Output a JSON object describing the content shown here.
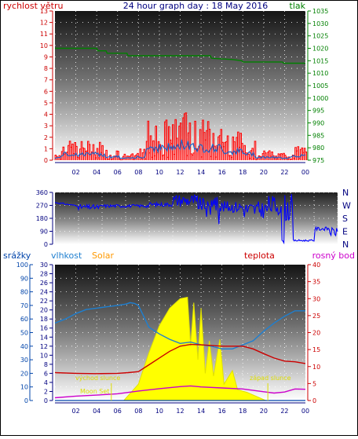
{
  "title": "24 hour graph day : 18 May 2016",
  "colors": {
    "wind": "#cc0000",
    "gust": "#ff0000",
    "wind_avg": "#1e64c8",
    "pressure": "#008000",
    "direction": "#0000ff",
    "humidity": "#1e7fd0",
    "solar": "#ffff00",
    "solar_text": "#ff9900",
    "temperature": "#cc0000",
    "dewpoint": "#cc00cc",
    "rain": "#0044aa",
    "sun_marker": "#dddd00"
  },
  "chart_data": [
    {
      "type": "line",
      "title": "24 hour graph day : 18 May 2016",
      "x_ticks": [
        "02",
        "04",
        "06",
        "08",
        "10",
        "12",
        "14",
        "16",
        "18",
        "20",
        "22",
        "00"
      ],
      "left_axis": {
        "label": "rychlost větru",
        "range": [
          0,
          13
        ],
        "ticks": [
          0,
          1,
          2,
          3,
          4,
          5,
          6,
          7,
          8,
          9,
          10,
          11,
          12,
          13
        ]
      },
      "right_axis": {
        "label": "tlak",
        "range": [
          975,
          1035
        ],
        "ticks": [
          975,
          980,
          985,
          990,
          995,
          1000,
          1005,
          1010,
          1015,
          1020,
          1025,
          1030,
          1035
        ]
      },
      "series": [
        {
          "name": "tlak",
          "axis": "right",
          "points": [
            [
              0,
              1020
            ],
            [
              4,
              1020
            ],
            [
              4.1,
              1019
            ],
            [
              4.9,
              1019
            ],
            [
              5,
              1018
            ],
            [
              6.9,
              1018
            ],
            [
              7,
              1017
            ],
            [
              14.9,
              1017
            ],
            [
              15,
              1016
            ],
            [
              17,
              1015.5
            ],
            [
              17.9,
              1015
            ],
            [
              18,
              1014.5
            ],
            [
              21.8,
              1014.5
            ],
            [
              21.9,
              1014
            ],
            [
              24,
              1014
            ]
          ]
        }
      ]
    },
    {
      "type": "scatter",
      "y_ticks": [
        0,
        90,
        180,
        270,
        360
      ],
      "compass_labels": [
        "N",
        "W",
        "S",
        "E",
        "N"
      ],
      "y_range": [
        0,
        360
      ],
      "x_ticks": [
        "02",
        "04",
        "06",
        "08",
        "10",
        "12",
        "14",
        "16",
        "18",
        "20",
        "22",
        "00"
      ]
    },
    {
      "type": "line",
      "x_ticks": [
        "02",
        "04",
        "06",
        "08",
        "10",
        "12",
        "14",
        "16",
        "18",
        "20",
        "22",
        "00"
      ],
      "axes": [
        {
          "label": "srážky",
          "range": [
            0,
            100
          ],
          "ticks": [
            0,
            10,
            20,
            30,
            40,
            50,
            60,
            70,
            80,
            90,
            100
          ]
        },
        {
          "label": "vlhkost",
          "range": [
            0,
            30
          ],
          "ticks": [
            0,
            2,
            4,
            6,
            8,
            10,
            12,
            14,
            16,
            18,
            20,
            22,
            24,
            26,
            28,
            30
          ]
        },
        {
          "label": "Solar"
        },
        {
          "label": "teplota"
        },
        {
          "label": "rosný bod",
          "range": [
            0,
            40
          ],
          "ticks": [
            0,
            5,
            10,
            15,
            20,
            25,
            30,
            35,
            40
          ]
        }
      ],
      "annotations": [
        "východ slunce",
        "západ slunce",
        "Moon Set"
      ],
      "series": [
        {
          "name": "vlhkost",
          "axis": "percent",
          "points": [
            [
              0,
              57
            ],
            [
              1,
              60
            ],
            [
              2,
              64
            ],
            [
              3,
              67
            ],
            [
              4,
              68
            ],
            [
              5,
              69
            ],
            [
              6,
              70
            ],
            [
              6.8,
              71
            ],
            [
              7.2,
              72
            ],
            [
              7.6,
              71.5
            ],
            [
              8,
              70
            ],
            [
              8.5,
              62
            ],
            [
              9,
              54
            ],
            [
              10,
              49
            ],
            [
              11,
              45
            ],
            [
              12,
              42
            ],
            [
              13,
              43
            ],
            [
              14,
              41
            ],
            [
              15,
              40
            ],
            [
              16,
              38
            ],
            [
              17,
              38
            ],
            [
              18,
              41
            ],
            [
              19,
              44
            ],
            [
              20,
              51
            ],
            [
              21,
              57
            ],
            [
              22,
              62
            ],
            [
              23,
              66
            ],
            [
              24,
              66
            ]
          ]
        },
        {
          "name": "teplota",
          "axis": "right",
          "points": [
            [
              0,
              8.2
            ],
            [
              2,
              8.0
            ],
            [
              4,
              7.9
            ],
            [
              6,
              8.0
            ],
            [
              7,
              8.2
            ],
            [
              8,
              8.5
            ],
            [
              9,
              10.5
            ],
            [
              10,
              12.5
            ],
            [
              11,
              14.5
            ],
            [
              12,
              16.0
            ],
            [
              13,
              16.5
            ],
            [
              14,
              16.4
            ],
            [
              15,
              16.2
            ],
            [
              16,
              16.0
            ],
            [
              17,
              16.0
            ],
            [
              18,
              16.0
            ],
            [
              19,
              15.2
            ],
            [
              20,
              13.8
            ],
            [
              21,
              12.5
            ],
            [
              22,
              11.6
            ],
            [
              23,
              11.4
            ],
            [
              24,
              10.9
            ]
          ]
        },
        {
          "name": "rosný bod",
          "axis": "right",
          "points": [
            [
              0,
              0.8
            ],
            [
              2,
              1.3
            ],
            [
              4,
              1.6
            ],
            [
              6,
              2.0
            ],
            [
              8,
              2.8
            ],
            [
              10,
              3.5
            ],
            [
              12,
              4.1
            ],
            [
              13,
              4.3
            ],
            [
              14,
              4.0
            ],
            [
              16,
              3.7
            ],
            [
              18,
              3.4
            ],
            [
              20,
              2.6
            ],
            [
              21,
              2.2
            ],
            [
              22,
              2.5
            ],
            [
              23,
              3.4
            ],
            [
              24,
              3.3
            ]
          ]
        },
        {
          "name": "Solar",
          "axis": "left",
          "points": [
            [
              6.6,
              0
            ],
            [
              8,
              12
            ],
            [
              9,
              35
            ],
            [
              10,
              55
            ],
            [
              11,
              68
            ],
            [
              12,
              75
            ],
            [
              12.7,
              76
            ],
            [
              13,
              40
            ],
            [
              13.3,
              72
            ],
            [
              13.7,
              30
            ],
            [
              14,
              68
            ],
            [
              14.4,
              20
            ],
            [
              14.8,
              44
            ],
            [
              15.2,
              18
            ],
            [
              15.8,
              45
            ],
            [
              16.2,
              12
            ],
            [
              17,
              22
            ],
            [
              17.5,
              8
            ],
            [
              18.4,
              6
            ],
            [
              19.6,
              2
            ],
            [
              20.2,
              0
            ]
          ]
        },
        {
          "name": "srážky",
          "axis": "left",
          "points": [
            [
              0,
              0
            ],
            [
              24,
              0
            ]
          ]
        }
      ]
    }
  ]
}
